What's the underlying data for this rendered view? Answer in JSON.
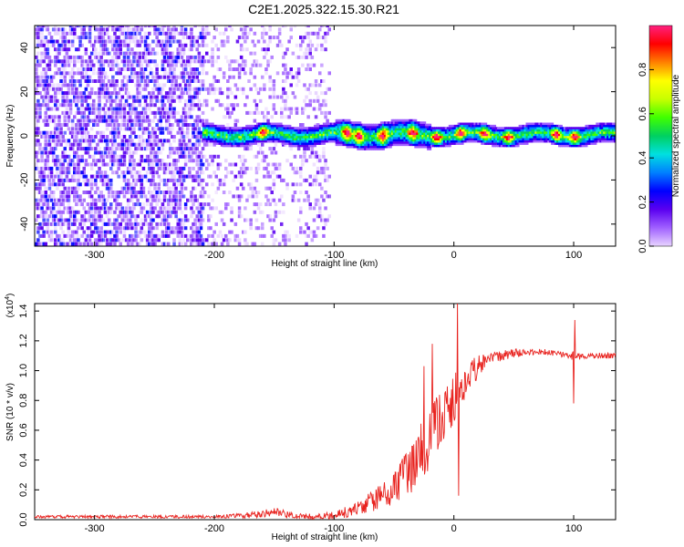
{
  "title": "C2E1.2025.322.15.30.R21",
  "chart_data": [
    {
      "type": "heatmap",
      "name": "spectrogram",
      "xlabel": "Height of straight line (km)",
      "ylabel": "Frequency (Hz)",
      "xlim": [
        -350,
        135
      ],
      "ylim": [
        -50,
        50
      ],
      "xticks": [
        -300,
        -200,
        -100,
        0,
        100
      ],
      "yticks": [
        -40,
        -20,
        0,
        20,
        40
      ],
      "colorbar": {
        "label": "Normalized spectral amplitude",
        "range": [
          0,
          1
        ],
        "ticks": [
          "0.0",
          "0.2",
          "0.4",
          "0.6",
          "0.8"
        ],
        "tick_values": [
          0.0,
          0.2,
          0.4,
          0.6,
          0.8
        ],
        "colors": [
          "#e8d4ff",
          "#a060ff",
          "#5a00f0",
          "#0000ff",
          "#0080ff",
          "#00e0e0",
          "#00d060",
          "#40ff00",
          "#c8ff00",
          "#ffff00",
          "#ff8000",
          "#ff0000",
          "#ff2080"
        ]
      },
      "noise_region_km": [
        -350,
        -105
      ],
      "dense_noise_km": [
        -350,
        -210
      ],
      "signal_band": {
        "start_km": -210,
        "end_km": 135,
        "center_hz": 0,
        "half_width_hz": 3,
        "hotspots_km": [
          -160,
          -90,
          -80,
          -60,
          -35,
          -15,
          5,
          25,
          45,
          85,
          100
        ]
      }
    },
    {
      "type": "line",
      "name": "snr",
      "xlabel": "Height of straight line (km)",
      "ylabel": "SNR (10 * v/v)",
      "y_multiplier": "(x10",
      "y_multiplier_exp": "4",
      "y_multiplier_close": ")",
      "xlim": [
        -350,
        135
      ],
      "ylim": [
        0,
        1.45
      ],
      "xticks": [
        -300,
        -200,
        -100,
        0,
        100
      ],
      "yticks": [
        0.0,
        0.2,
        0.4,
        0.6,
        0.8,
        1.0,
        1.2,
        1.4
      ],
      "ytick_labels": [
        "0.0",
        "0.2",
        "0.4",
        "0.6",
        "0.8",
        "1.0",
        "1.2",
        "1.4"
      ],
      "color": "#e8221e",
      "x": [
        -350,
        -300,
        -250,
        -200,
        -170,
        -150,
        -130,
        -110,
        -100,
        -90,
        -80,
        -70,
        -60,
        -50,
        -40,
        -30,
        -20,
        -10,
        -5,
        0,
        5,
        10,
        20,
        30,
        40,
        50,
        60,
        70,
        80,
        90,
        100,
        110,
        120,
        135
      ],
      "y": [
        0.02,
        0.02,
        0.02,
        0.02,
        0.03,
        0.05,
        0.02,
        0.02,
        0.03,
        0.05,
        0.08,
        0.12,
        0.16,
        0.22,
        0.3,
        0.42,
        0.55,
        0.68,
        0.75,
        0.8,
        0.85,
        0.95,
        1.02,
        1.08,
        1.1,
        1.12,
        1.12,
        1.13,
        1.12,
        1.11,
        1.1,
        1.1,
        1.1,
        1.1
      ],
      "noise": [
        0.01,
        0.01,
        0.01,
        0.01,
        0.02,
        0.03,
        0.02,
        0.02,
        0.03,
        0.04,
        0.05,
        0.07,
        0.09,
        0.12,
        0.15,
        0.2,
        0.22,
        0.2,
        0.18,
        0.2,
        0.15,
        0.12,
        0.08,
        0.04,
        0.04,
        0.03,
        0.02,
        0.02,
        0.02,
        0.02,
        0.03,
        0.02,
        0.02,
        0.02
      ],
      "spikes": [
        {
          "x": -25,
          "y": 1.03
        },
        {
          "x": -18,
          "y": 1.18
        },
        {
          "x": 3,
          "y": 1.47
        },
        {
          "x": 4,
          "y": 0.16
        },
        {
          "x": 100,
          "y": 0.78
        },
        {
          "x": 101,
          "y": 1.34
        }
      ]
    }
  ]
}
